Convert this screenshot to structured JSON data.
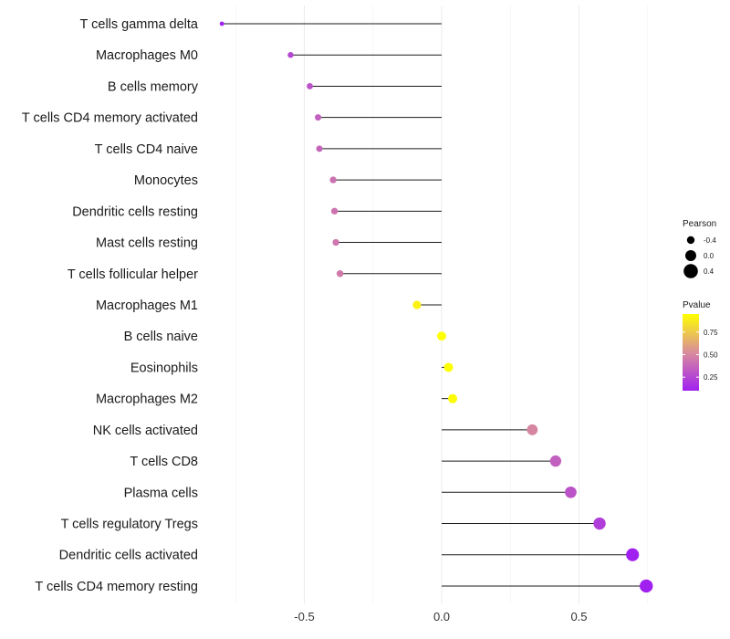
{
  "chart_data": {
    "type": "lollipop",
    "title": "",
    "xlabel": "",
    "ylabel": "",
    "xlim": [
      -0.85,
      0.8
    ],
    "xticks": [
      -0.5,
      0.0,
      0.5
    ],
    "xtick_labels": [
      "-0.5",
      "0.0",
      "0.5"
    ],
    "grid": true,
    "legend_position": "right",
    "colors": {
      "low": "#a020f0",
      "mid": "#d98c9c",
      "high": "#ffff00"
    },
    "categories": [
      "T cells gamma delta",
      "Macrophages M0",
      "B cells memory",
      "T cells CD4 memory activated",
      "T cells CD4 naive",
      "Monocytes",
      "Dendritic cells resting",
      "Mast cells resting",
      "T cells follicular helper",
      "Macrophages M1",
      "B cells naive",
      "Eosinophils",
      "Macrophages M2",
      "NK cells activated",
      "T cells CD8",
      "Plasma cells",
      "T cells regulatory  Tregs ",
      "Dendritic cells activated",
      "T cells CD4 memory resting"
    ],
    "pearson": [
      -0.8,
      -0.55,
      -0.48,
      -0.45,
      -0.445,
      -0.395,
      -0.39,
      -0.385,
      -0.37,
      -0.09,
      0.0,
      0.025,
      0.04,
      0.33,
      0.415,
      0.47,
      0.575,
      0.695,
      0.745
    ],
    "pvalue": [
      0.04,
      0.25,
      0.3,
      0.35,
      0.37,
      0.42,
      0.43,
      0.44,
      0.45,
      0.9,
      1.0,
      0.97,
      0.93,
      0.5,
      0.35,
      0.3,
      0.22,
      0.1,
      0.06
    ],
    "legend_size": {
      "title": "Pearson",
      "values": [
        -0.4,
        0.0,
        0.4
      ],
      "labels": [
        "-0.4",
        "0.0",
        "0.4"
      ]
    },
    "legend_color": {
      "title": "Pvalue",
      "range": [
        0.1,
        0.95
      ],
      "ticks": [
        0.25,
        0.5,
        0.75
      ],
      "labels": [
        "0.25",
        "0.50",
        "0.75"
      ]
    }
  }
}
